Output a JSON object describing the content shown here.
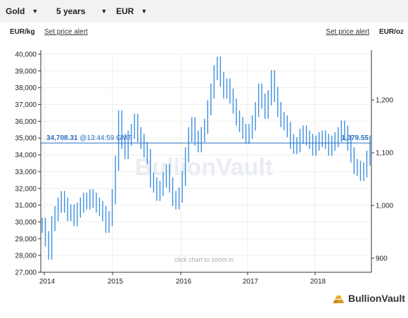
{
  "toolbar": {
    "metal": "Gold",
    "period": "5 years",
    "currency": "EUR"
  },
  "header": {
    "left_unit": "EUR/kg",
    "left_alert": "Set price alert",
    "right_alert": "Set price alert",
    "right_unit": "EUR/oz"
  },
  "chart_data": {
    "type": "line",
    "x_ticks": [
      "2014",
      "2015",
      "2016",
      "2017",
      "2018"
    ],
    "y_left_ticks": [
      "40,000",
      "39,000",
      "38,000",
      "37,000",
      "36,000",
      "35,000",
      "34,000",
      "33,000",
      "32,000",
      "31,000",
      "30,000",
      "29,000",
      "28,000",
      "27,000"
    ],
    "y_left_range": [
      27000,
      40000
    ],
    "y_right_ticks": [
      "1,200",
      "1,100",
      "1,000",
      "900"
    ],
    "current_value_left": "34,708.31",
    "current_time": "@13:44:59 GMT",
    "current_value_right": "1,079.55",
    "watermark": "BullionVault",
    "zoom_hint": "click chart to zoom in",
    "grid": true,
    "series": [
      {
        "values": [
          29800,
          29000,
          28200,
          29900,
          30500,
          31000,
          31400,
          31000,
          30500,
          30600,
          30200,
          30700,
          31000,
          31300,
          31200,
          31500,
          31300,
          31000,
          30800,
          30500,
          29800,
          30200,
          31500,
          33500,
          36200,
          34800,
          34200,
          35000,
          35400,
          36000,
          35200,
          34800,
          34300,
          33900,
          32500,
          32200,
          31700,
          32000,
          32500,
          33000,
          32200,
          31400,
          31200,
          31600,
          32600,
          34000,
          35200,
          35800,
          35000,
          34600,
          35200,
          35700,
          36800,
          37800,
          38900,
          39400,
          38500,
          37800,
          38100,
          37500,
          36900,
          36200,
          35800,
          35400,
          35100,
          35400,
          35900,
          36700,
          37800,
          37200,
          36600,
          37400,
          38600,
          37600,
          36700,
          36100,
          35900,
          35500,
          34800,
          34500,
          34600,
          35100,
          35300,
          35000,
          34800,
          34400,
          34700,
          34900,
          35000,
          34800,
          34400,
          34700,
          34900,
          35200,
          35600,
          35300,
          34700,
          34000,
          33300,
          33200,
          32900,
          33100,
          33800,
          34708
        ]
      }
    ]
  }
}
